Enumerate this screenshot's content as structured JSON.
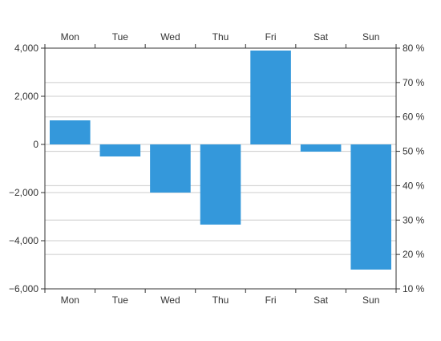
{
  "chart_data": {
    "type": "bar",
    "categories": [
      "Mon",
      "Tue",
      "Wed",
      "Thu",
      "Fri",
      "Sat",
      "Sun"
    ],
    "series": [
      {
        "values": [
          1000,
          -500,
          -2000,
          -3330,
          3900,
          -300,
          -5200
        ]
      }
    ],
    "left_axis": {
      "ylim": [
        -6000,
        4000
      ],
      "ticks": [
        -6000,
        -4000,
        -2000,
        0,
        2000,
        4000
      ],
      "tick_labels": [
        "−6,000",
        "−4,000",
        "−2,000",
        "0",
        "2,000",
        "4,000"
      ]
    },
    "right_axis": {
      "ylim": [
        10,
        80
      ],
      "ticks": [
        10,
        20,
        30,
        40,
        50,
        60,
        70,
        80
      ],
      "tick_labels": [
        "10 %",
        "20 %",
        "30 %",
        "40 %",
        "50 %",
        "60 %",
        "70 %",
        "80 %"
      ]
    },
    "category_labels_top": true,
    "category_labels_bottom": true,
    "grid": true,
    "colors": {
      "bar": "#3498db",
      "grid": "#cccccc",
      "axis": "#333333"
    }
  }
}
